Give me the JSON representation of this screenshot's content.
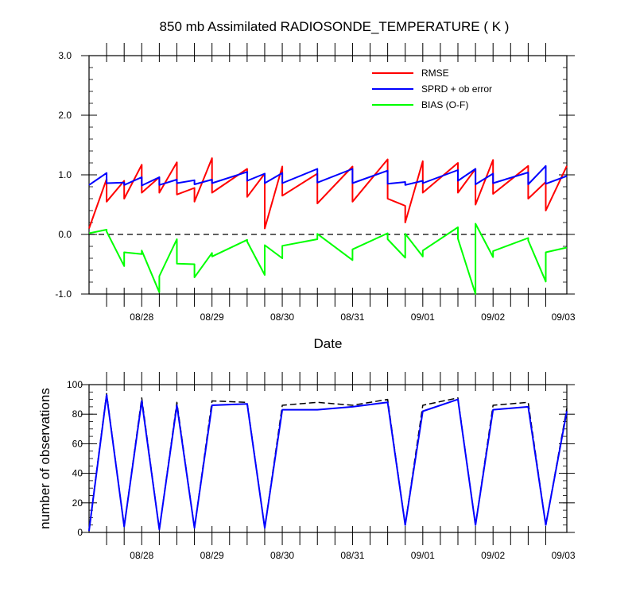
{
  "chart_data": [
    {
      "type": "line",
      "title": "850 mb Assimilated RADIOSONDE_TEMPERATURE ( K )",
      "xlabel": "Date",
      "ylabel": "",
      "ylim": [
        -1.0,
        3.0
      ],
      "yticks": [
        -1.0,
        0.0,
        1.0,
        2.0,
        3.0
      ],
      "ytick_labels": [
        "-1.0",
        "0.0",
        "1.0",
        "2.0",
        "3.0"
      ],
      "xlim": [
        0,
        6.8
      ],
      "xtick_positions": [
        0.75,
        1.75,
        2.75,
        3.75,
        4.75,
        5.75,
        6.75
      ],
      "xtick_labels": [
        "08/28",
        "08/29",
        "08/30",
        "08/31",
        "09/01",
        "09/02",
        "09/03"
      ],
      "minor_x_positions": [
        0.25,
        0.5,
        0.75,
        1.0,
        1.25,
        1.5,
        1.75,
        2.0,
        2.25,
        2.5,
        2.75,
        3.0,
        3.25,
        3.5,
        3.75,
        4.0,
        4.25,
        4.5,
        4.75,
        5.0,
        5.25,
        5.5,
        5.75,
        6.0,
        6.25,
        6.5
      ],
      "zero_line": true,
      "legend_position": "top-right",
      "series": [
        {
          "name": "RMSE",
          "color": "#ff0000",
          "dash": false,
          "x": [
            0,
            0.25,
            0.25,
            0.5,
            0.5,
            0.75,
            0.75,
            1.0,
            1.0,
            1.25,
            1.25,
            1.5,
            1.5,
            1.75,
            1.75,
            2.25,
            2.25,
            2.5,
            2.5,
            2.75,
            2.75,
            3.25,
            3.25,
            3.75,
            3.75,
            4.25,
            4.25,
            4.5,
            4.5,
            4.75,
            4.75,
            5.25,
            5.25,
            5.5,
            5.5,
            5.75,
            5.75,
            6.25,
            6.25,
            6.5,
            6.5,
            6.8
          ],
          "y": [
            0.1,
            0.93,
            0.55,
            0.9,
            0.6,
            1.17,
            0.7,
            0.96,
            0.7,
            1.21,
            0.67,
            0.78,
            0.55,
            1.28,
            0.7,
            1.1,
            0.63,
            1.02,
            0.1,
            1.14,
            0.65,
            1.02,
            0.52,
            1.14,
            0.55,
            1.26,
            0.6,
            0.48,
            0.2,
            1.23,
            0.7,
            1.2,
            0.7,
            1.1,
            0.5,
            1.25,
            0.68,
            1.15,
            0.6,
            0.88,
            0.4,
            1.15
          ]
        },
        {
          "name": "SPRD + ob error",
          "color": "#0000ff",
          "dash": false,
          "x": [
            0,
            0.25,
            0.25,
            0.5,
            0.5,
            0.75,
            0.75,
            1.0,
            1.0,
            1.25,
            1.25,
            1.5,
            1.5,
            1.75,
            1.75,
            2.25,
            2.25,
            2.5,
            2.5,
            2.75,
            2.75,
            3.25,
            3.25,
            3.75,
            3.75,
            4.25,
            4.25,
            4.5,
            4.5,
            4.75,
            4.75,
            5.25,
            5.25,
            5.5,
            5.5,
            5.75,
            5.75,
            6.25,
            6.25,
            6.5,
            6.5,
            6.8
          ],
          "y": [
            0.83,
            1.03,
            0.86,
            0.87,
            0.83,
            0.96,
            0.82,
            0.96,
            0.83,
            0.92,
            0.86,
            0.91,
            0.84,
            0.92,
            0.86,
            1.05,
            0.9,
            1.02,
            0.86,
            1.03,
            0.86,
            1.1,
            0.87,
            1.1,
            0.86,
            1.07,
            0.85,
            0.88,
            0.83,
            0.9,
            0.86,
            1.08,
            0.9,
            1.1,
            0.84,
            1.02,
            0.86,
            1.04,
            0.84,
            1.15,
            0.85,
            0.98
          ]
        },
        {
          "name": "BIAS (O-F)",
          "color": "#00ff00",
          "dash": false,
          "x": [
            0,
            0.25,
            0.25,
            0.5,
            0.5,
            0.75,
            0.75,
            1.0,
            1.0,
            1.25,
            1.25,
            1.5,
            1.5,
            1.75,
            1.75,
            2.25,
            2.25,
            2.5,
            2.5,
            2.75,
            2.75,
            3.25,
            3.25,
            3.75,
            3.75,
            4.25,
            4.25,
            4.5,
            4.5,
            4.75,
            4.75,
            5.25,
            5.25,
            5.5,
            5.5,
            5.75,
            5.75,
            6.25,
            6.25,
            6.5,
            6.5,
            6.8
          ],
          "y": [
            0.02,
            0.08,
            0.05,
            -0.53,
            -0.3,
            -0.33,
            -0.27,
            -0.97,
            -0.7,
            -0.08,
            -0.49,
            -0.5,
            -0.72,
            -0.31,
            -0.37,
            -0.09,
            -0.12,
            -0.68,
            -0.18,
            -0.4,
            -0.19,
            -0.08,
            0.01,
            -0.43,
            -0.25,
            0.02,
            -0.08,
            -0.39,
            0.01,
            -0.37,
            -0.27,
            0.12,
            -0.07,
            -1.0,
            0.18,
            -0.38,
            -0.28,
            -0.06,
            -0.1,
            -0.79,
            -0.3,
            -0.22
          ]
        }
      ]
    },
    {
      "type": "line",
      "title": "",
      "xlabel": "",
      "ylabel": "number of observations",
      "ylim": [
        0,
        100
      ],
      "yticks": [
        0,
        20,
        40,
        60,
        80,
        100
      ],
      "ytick_labels": [
        "0",
        "20",
        "40",
        "60",
        "80",
        "100"
      ],
      "xlim": [
        0,
        6.8
      ],
      "xtick_positions": [
        0.75,
        1.75,
        2.75,
        3.75,
        4.75,
        5.75,
        6.75
      ],
      "xtick_labels": [
        "08/28",
        "08/29",
        "08/30",
        "08/31",
        "09/01",
        "09/02",
        "09/03"
      ],
      "minor_x_positions": [
        0.25,
        0.5,
        0.75,
        1.0,
        1.25,
        1.5,
        1.75,
        2.0,
        2.25,
        2.5,
        2.75,
        3.0,
        3.25,
        3.5,
        3.75,
        4.0,
        4.25,
        4.5,
        4.75,
        5.0,
        5.25,
        5.5,
        5.75,
        6.0,
        6.25,
        6.5
      ],
      "legend_position": "none",
      "series": [
        {
          "color": "#000000",
          "dash": true,
          "x": [
            0,
            0.25,
            0.5,
            0.75,
            1.0,
            1.25,
            1.5,
            1.75,
            2.25,
            2.5,
            2.75,
            3.25,
            3.75,
            4.25,
            4.5,
            4.75,
            5.25,
            5.5,
            5.75,
            6.25,
            6.5,
            6.8
          ],
          "y": [
            2,
            94,
            4,
            91,
            2,
            88,
            3,
            89,
            88,
            3,
            86,
            88,
            86,
            90,
            5,
            86,
            91,
            5,
            86,
            88,
            5,
            84
          ]
        },
        {
          "color": "#0000ff",
          "dash": false,
          "x": [
            0,
            0.25,
            0.5,
            0.75,
            1.0,
            1.25,
            1.5,
            1.75,
            2.25,
            2.5,
            2.75,
            3.25,
            3.75,
            4.25,
            4.5,
            4.75,
            5.25,
            5.5,
            5.75,
            6.25,
            6.5,
            6.8
          ],
          "y": [
            1,
            93,
            4,
            89,
            2,
            86,
            3,
            86,
            87,
            3,
            83,
            83,
            85,
            88,
            5,
            82,
            90,
            5,
            83,
            85,
            5,
            82
          ]
        }
      ]
    }
  ]
}
